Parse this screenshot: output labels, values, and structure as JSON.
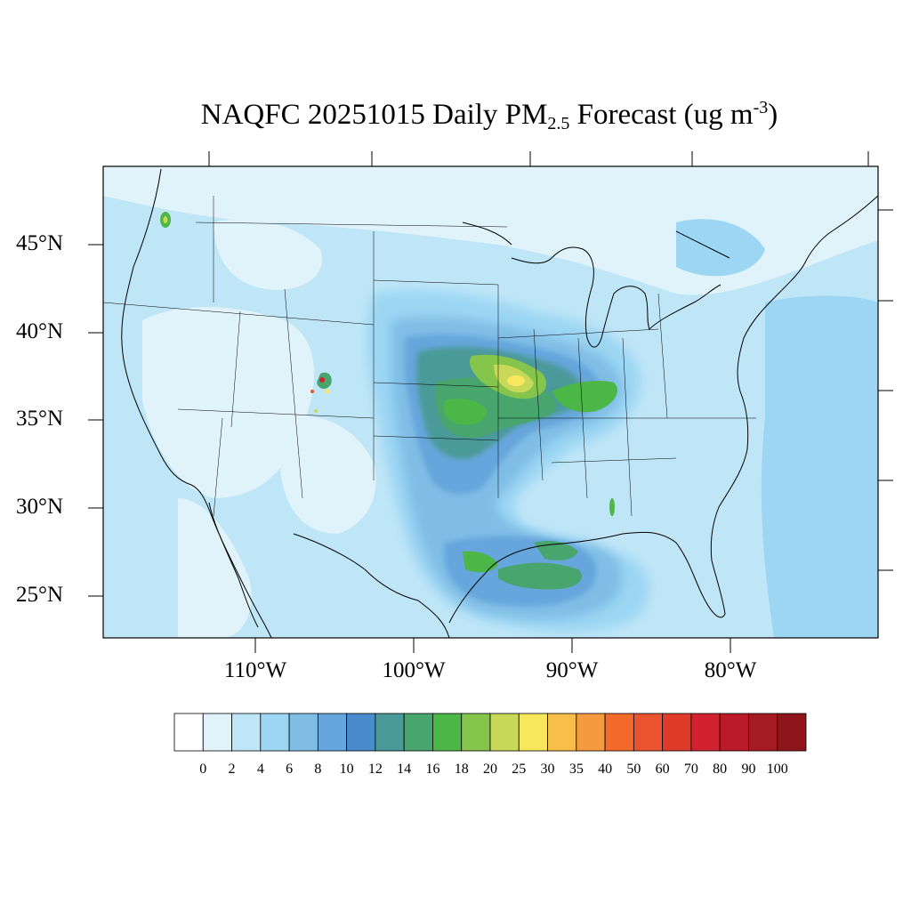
{
  "title": {
    "main": "NAQFC 20251015 Daily PM",
    "sub": "2.5",
    "after": " Forecast (ug m",
    "sup": "-3",
    "close": ")"
  },
  "lat_labels": [
    "45°N",
    "40°N",
    "35°N",
    "30°N",
    "25°N"
  ],
  "lon_labels": [
    "110°W",
    "100°W",
    "90°W",
    "80°W"
  ],
  "colorbar": {
    "colors": [
      "#ffffff",
      "#e0f3fb",
      "#bfe6f7",
      "#9cd6f3",
      "#7fbde5",
      "#66a6dc",
      "#4a8ccb",
      "#4b9a9a",
      "#49a56e",
      "#4cb747",
      "#86c54b",
      "#c8d95a",
      "#f8e75c",
      "#f8be4a",
      "#f59a3e",
      "#f46a2b",
      "#ea5330",
      "#df3a2a",
      "#d22230",
      "#bb1b28",
      "#a61a22",
      "#8e161b"
    ],
    "labels": [
      "0",
      "2",
      "4",
      "6",
      "8",
      "10",
      "12",
      "14",
      "16",
      "18",
      "20",
      "25",
      "30",
      "35",
      "40",
      "50",
      "60",
      "70",
      "80",
      "90",
      "100"
    ]
  }
}
